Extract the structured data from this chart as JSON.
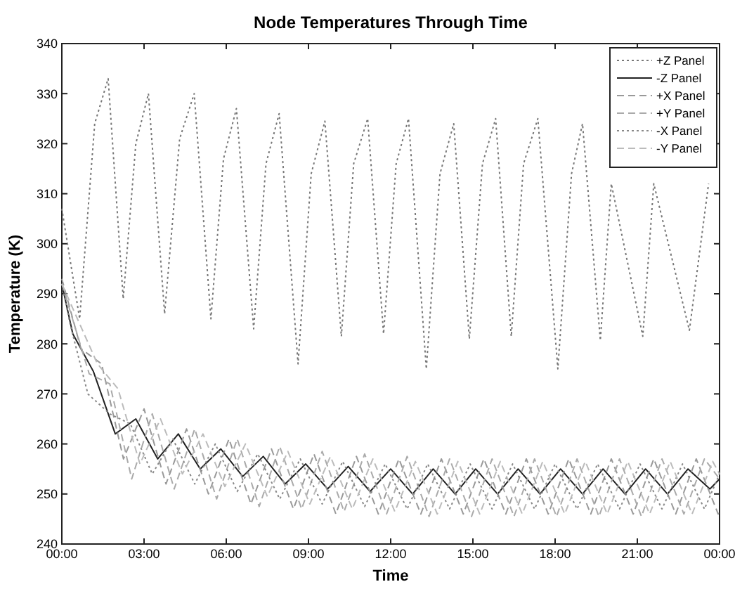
{
  "chart_data": {
    "type": "line",
    "title": "Node Temperatures Through Time",
    "xlabel": "Time",
    "ylabel": "Temperature (K)",
    "xlim": [
      0,
      24
    ],
    "xticks": [
      {
        "value": 0,
        "label": "00:00"
      },
      {
        "value": 3,
        "label": "03:00"
      },
      {
        "value": 6,
        "label": "06:00"
      },
      {
        "value": 9,
        "label": "09:00"
      },
      {
        "value": 12,
        "label": "12:00"
      },
      {
        "value": 15,
        "label": "15:00"
      },
      {
        "value": 18,
        "label": "18:00"
      },
      {
        "value": 21,
        "label": "21:00"
      },
      {
        "value": 24,
        "label": "00:00"
      }
    ],
    "ylim": [
      240,
      340
    ],
    "yticks": [
      240,
      250,
      260,
      270,
      280,
      290,
      300,
      310,
      320,
      330,
      340
    ],
    "grid": false,
    "legend": "top right",
    "marker": "none",
    "series": [
      {
        "name": "+Z Panel",
        "color": "#777777",
        "line_style": "dotted",
        "x": [
          0,
          0.65,
          1.2,
          1.69,
          2.24,
          2.7,
          3.16,
          3.75,
          4.3,
          4.83,
          5.44,
          5.9,
          6.37,
          7.0,
          7.45,
          7.93,
          8.62,
          9.1,
          9.6,
          10.2,
          10.65,
          11.16,
          11.74,
          12.2,
          12.65,
          13.3,
          13.8,
          14.3,
          14.87,
          15.35,
          15.83,
          16.4,
          16.85,
          17.37,
          18.1,
          18.6,
          19.0,
          19.65,
          20.05,
          21.2,
          21.6,
          22.9,
          23.6
        ],
        "values": [
          307,
          285,
          324,
          333,
          289,
          320,
          330,
          286,
          321,
          330,
          285,
          317,
          327,
          283,
          316,
          326,
          276,
          314,
          324.5,
          281.5,
          316,
          325,
          282,
          316,
          325,
          275,
          314,
          324,
          281,
          316,
          325,
          281.5,
          316,
          325,
          275,
          314,
          324,
          280.7,
          312,
          281.5,
          312,
          282.7,
          312
        ]
      },
      {
        "name": "-Z Panel",
        "color": "#222222",
        "line_style": "solid",
        "x": [
          0,
          0.4,
          1.15,
          1.95,
          2.7,
          3.5,
          4.25,
          5.05,
          5.8,
          6.6,
          7.35,
          8.15,
          8.9,
          9.7,
          10.45,
          11.25,
          12.0,
          12.8,
          13.55,
          14.35,
          15.1,
          15.9,
          16.65,
          17.45,
          18.2,
          19.0,
          19.75,
          20.55,
          21.3,
          22.1,
          22.85,
          23.65,
          24
        ],
        "values": [
          292,
          282,
          274.5,
          262,
          265,
          257,
          262,
          255,
          259,
          253.5,
          257.5,
          252,
          256,
          251,
          255.5,
          250.5,
          255,
          250,
          255,
          250,
          255,
          250,
          255,
          250,
          255,
          250,
          255,
          250,
          255,
          250,
          255,
          251,
          253
        ]
      },
      {
        "name": "+X Panel",
        "color": "#999999",
        "line_style": "dashed",
        "x": [
          0,
          0.7,
          1.45,
          2.25,
          3.0,
          3.8,
          4.55,
          5.35,
          6.1,
          6.9,
          7.65,
          8.45,
          9.2,
          10.0,
          10.75,
          11.55,
          12.3,
          13.1,
          13.85,
          14.65,
          15.4,
          16.2,
          16.95,
          17.75,
          18.5,
          19.3,
          20.05,
          20.85,
          21.6,
          22.4,
          23.15,
          23.95,
          24
        ],
        "values": [
          293,
          279,
          276,
          257,
          267,
          252,
          263,
          250,
          261,
          248,
          259,
          247,
          258,
          246,
          257.5,
          246,
          257,
          246,
          257,
          246,
          257,
          246,
          257,
          246,
          257,
          246,
          257,
          246,
          257,
          246,
          257,
          246,
          247
        ]
      },
      {
        "name": "+Y Panel",
        "color": "#aaaaaa",
        "line_style": "dashed",
        "x": [
          0,
          1.0,
          1.75,
          2.55,
          3.3,
          4.1,
          4.85,
          5.65,
          6.4,
          7.2,
          7.95,
          8.75,
          9.5,
          10.3,
          11.05,
          11.85,
          12.6,
          13.4,
          14.15,
          14.95,
          15.7,
          16.5,
          17.25,
          18.05,
          18.8,
          19.6,
          20.35,
          21.15,
          21.9,
          22.7,
          23.45,
          24
        ],
        "values": [
          292,
          274,
          272,
          253,
          266,
          251,
          263,
          249,
          261,
          247.5,
          259.5,
          247,
          258.5,
          246.5,
          258,
          246,
          257.5,
          245.5,
          257,
          245.5,
          257,
          245.5,
          257,
          245.5,
          257,
          245.5,
          257,
          245.5,
          257,
          246,
          257,
          253
        ]
      },
      {
        "name": "-X Panel",
        "color": "#888888",
        "line_style": "dotted",
        "x": [
          0,
          0.3,
          0.95,
          1.75,
          2.5,
          3.3,
          4.05,
          4.85,
          5.6,
          6.4,
          7.15,
          7.95,
          8.7,
          9.5,
          10.25,
          11.05,
          11.8,
          12.6,
          13.35,
          14.15,
          14.9,
          15.7,
          16.45,
          17.25,
          18.0,
          18.8,
          19.55,
          20.35,
          21.1,
          21.9,
          22.65,
          23.45,
          24
        ],
        "values": [
          292,
          284,
          270,
          266,
          264,
          254,
          261,
          252,
          260,
          250.5,
          258,
          249,
          257,
          248,
          256.5,
          247.5,
          256,
          247,
          256,
          247,
          256,
          247,
          256,
          247,
          256,
          247,
          256,
          247,
          256,
          247,
          256,
          247,
          254
        ]
      },
      {
        "name": "-Y Panel",
        "color": "#bbbbbb",
        "line_style": "dashed",
        "x": [
          0,
          1.3,
          2.05,
          2.85,
          3.6,
          4.4,
          5.15,
          5.95,
          6.7,
          7.5,
          8.25,
          9.05,
          9.8,
          10.6,
          11.35,
          12.15,
          12.9,
          13.7,
          14.45,
          15.25,
          16.0,
          16.8,
          17.55,
          18.35,
          19.1,
          19.9,
          20.65,
          21.45,
          22.2,
          23.0,
          23.75,
          24
        ],
        "values": [
          292,
          276,
          271,
          256,
          265,
          254,
          262,
          251.5,
          260,
          249.5,
          258.5,
          248,
          257.5,
          247,
          257,
          246.5,
          256.5,
          246,
          256.5,
          246,
          256.5,
          246,
          256.5,
          246,
          256.5,
          246,
          256.5,
          246,
          256.5,
          246,
          256.5,
          254
        ]
      }
    ]
  }
}
